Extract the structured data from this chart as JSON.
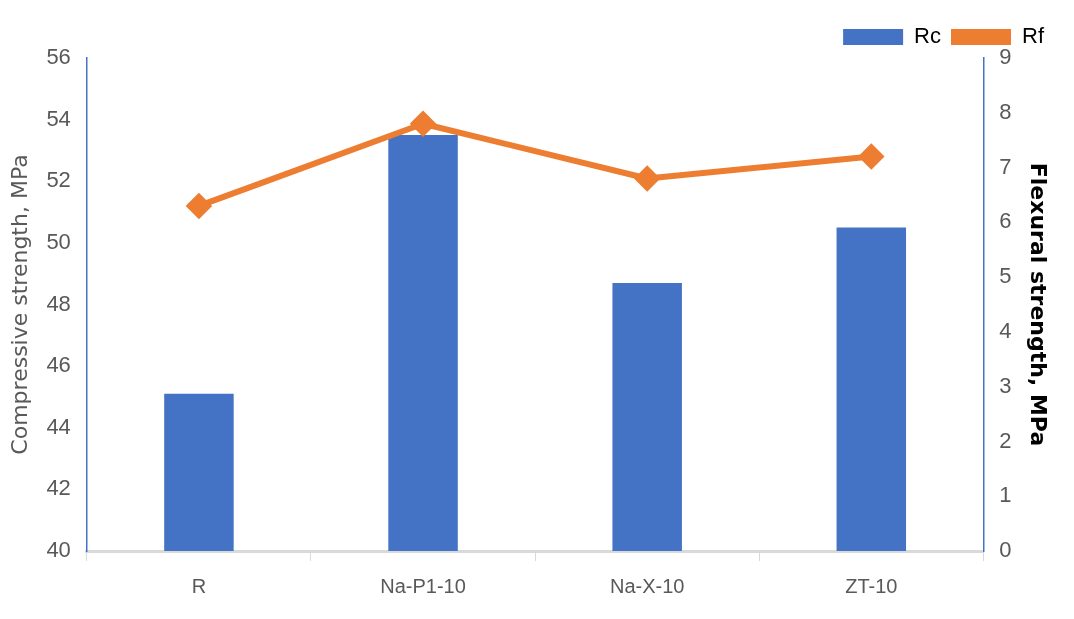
{
  "chart_data": {
    "type": "bar",
    "categories": [
      "R",
      "Na-P1-10",
      "Na-X-10",
      "ZT-10"
    ],
    "series": [
      {
        "name": "Rc",
        "color": "#4472c4",
        "values": [
          45.1,
          53.5,
          48.7,
          50.5
        ]
      },
      {
        "name": "Rf",
        "type": "line",
        "axis": "y2",
        "color": "#ed7d31",
        "marker": "diamond",
        "values": [
          6.3,
          7.8,
          6.8,
          7.2
        ]
      }
    ],
    "ylabel": "Compressive strength, MPa",
    "y2label": "Flexural strength, MPa",
    "ylim": [
      40,
      56
    ],
    "yticks": [
      40,
      42,
      44,
      46,
      48,
      50,
      52,
      54,
      56
    ],
    "y2lim": [
      0,
      9
    ],
    "y2ticks": [
      0,
      1,
      2,
      3,
      4,
      5,
      6,
      7,
      8,
      9
    ],
    "grid": false,
    "legend": "top right"
  }
}
